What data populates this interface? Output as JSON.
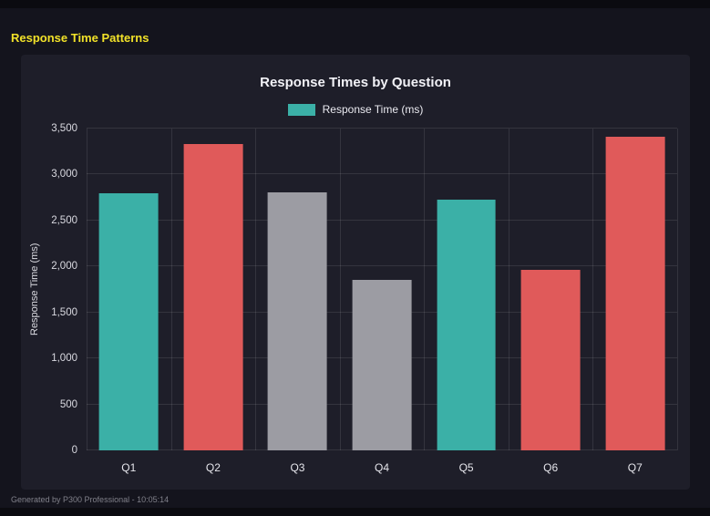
{
  "page": {
    "title": "Response Time Patterns",
    "footer": "Generated by P300 Professional - 10:05:14"
  },
  "colors": {
    "background": "#14141d",
    "panel": "#1e1e29",
    "title_text": "#f2e229",
    "axis_text": "#d9d9e0",
    "grid": "rgba(255,255,255,0.10)"
  },
  "chart_data": {
    "type": "bar",
    "title": "Response Times by Question",
    "categories": [
      "Q1",
      "Q2",
      "Q3",
      "Q4",
      "Q5",
      "Q6",
      "Q7"
    ],
    "values": [
      2800,
      3330,
      2810,
      1850,
      2730,
      1960,
      3410
    ],
    "colors": [
      "#3bb0a7",
      "#e05a5a",
      "#9c9ca3",
      "#9c9ca3",
      "#3bb0a7",
      "#e05a5a",
      "#e05a5a"
    ],
    "legend": [
      "Response Time (ms)"
    ],
    "legend_color": "#3bb0a7",
    "legend_position": "top",
    "xlabel": "",
    "ylabel": "Response Time (ms)",
    "ylim": [
      0,
      3500
    ],
    "ytick_step": 500,
    "ytick_labels": [
      "0",
      "500",
      "1,000",
      "1,500",
      "2,000",
      "2,500",
      "3,000",
      "3,500"
    ],
    "grid": true
  }
}
